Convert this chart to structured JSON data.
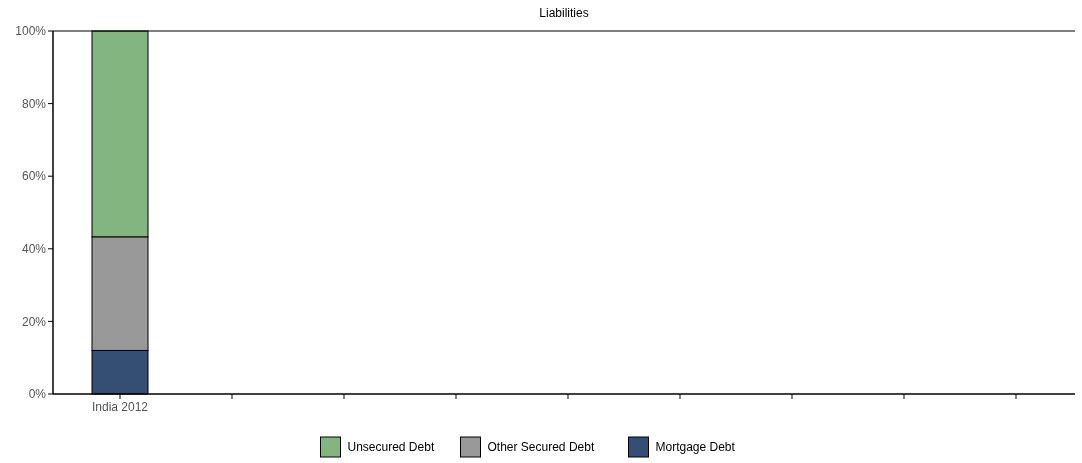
{
  "chart_data": {
    "type": "bar",
    "title": "Liabilities",
    "stacked": true,
    "categories": [
      "India 2012",
      null,
      null,
      null,
      null,
      null,
      null,
      null,
      null
    ],
    "series": [
      {
        "name": "Mortgage Debt",
        "color": "#344e74",
        "values": [
          12,
          null,
          null,
          null,
          null,
          null,
          null,
          null,
          null
        ]
      },
      {
        "name": "Other Secured Debt",
        "color": "#999999",
        "values": [
          31.3,
          null,
          null,
          null,
          null,
          null,
          null,
          null,
          null
        ]
      },
      {
        "name": "Unsecured Debt",
        "color": "#82b57f",
        "values": [
          56.7,
          null,
          null,
          null,
          null,
          null,
          null,
          null,
          null
        ]
      }
    ],
    "ylim": [
      0,
      100
    ],
    "yticks": [
      {
        "value": 0,
        "label": "0%"
      },
      {
        "value": 20,
        "label": "20%"
      },
      {
        "value": 40,
        "label": "40%"
      },
      {
        "value": 60,
        "label": "60%"
      },
      {
        "value": 80,
        "label": "80%"
      },
      {
        "value": 100,
        "label": "100%"
      }
    ],
    "grid": false,
    "legend": "bottom"
  }
}
